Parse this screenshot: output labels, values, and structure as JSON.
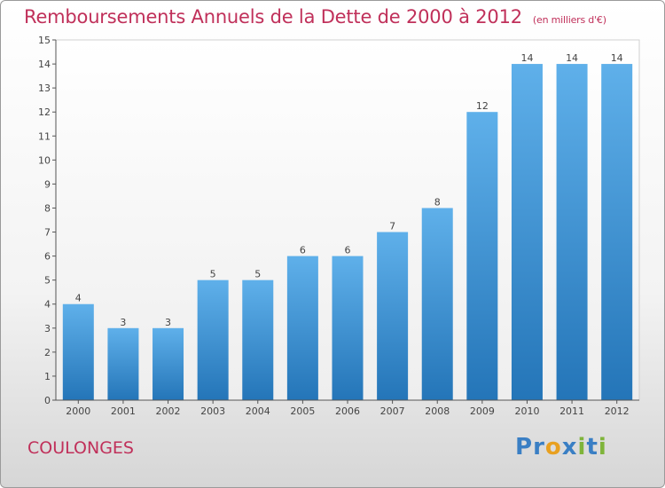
{
  "title": "Remboursements Annuels de la Dette de 2000 à 2012",
  "unit": "(en milliers d'€)",
  "commune": "COULONGES",
  "brand": {
    "letters": [
      {
        "ch": "P",
        "color": "#3a7fc4"
      },
      {
        "ch": "r",
        "color": "#3a7fc4"
      },
      {
        "ch": "o",
        "color": "#e8a020"
      },
      {
        "ch": "x",
        "color": "#3a7fc4"
      },
      {
        "ch": "i",
        "color": "#7fb43a"
      },
      {
        "ch": "t",
        "color": "#3a7fc4"
      },
      {
        "ch": "i",
        "color": "#7fb43a"
      }
    ]
  },
  "chart_data": {
    "type": "bar",
    "categories": [
      "2000",
      "2001",
      "2002",
      "2003",
      "2004",
      "2005",
      "2006",
      "2007",
      "2008",
      "2009",
      "2010",
      "2011",
      "2012"
    ],
    "values": [
      4,
      3,
      3,
      5,
      5,
      6,
      6,
      7,
      8,
      12,
      14,
      14,
      14
    ],
    "ylim": [
      0,
      15
    ],
    "yticks": [
      0,
      1,
      2,
      3,
      4,
      5,
      6,
      7,
      8,
      9,
      10,
      11,
      12,
      13,
      14,
      15
    ],
    "grid": false,
    "data_labels": true,
    "bar_color": "#4a9fdf"
  }
}
